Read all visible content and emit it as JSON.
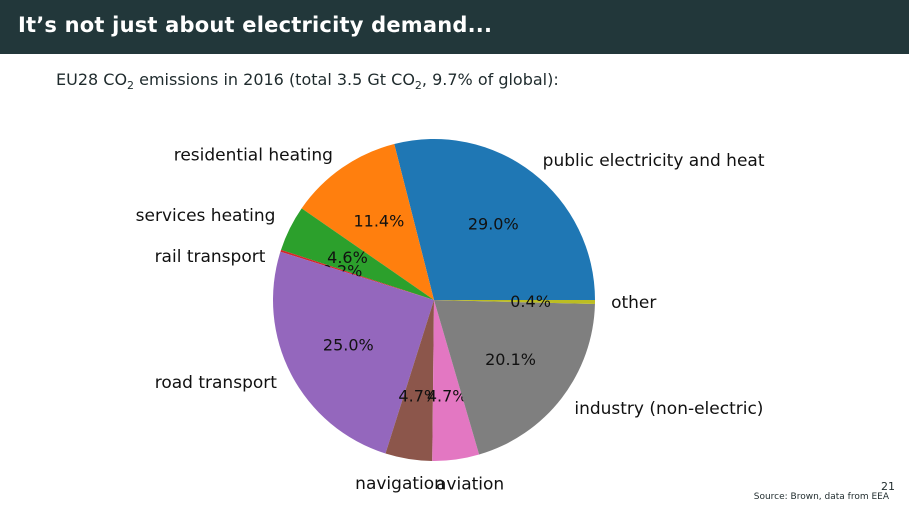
{
  "slide": {
    "title": "It’s not just about electricity demand...",
    "subtitle_parts": {
      "a": "EU28 CO",
      "a_sub": "2",
      "b": " emissions in 2016 (total 3.5 Gt CO",
      "b_sub": "2",
      "c": ", 9.7% of global):"
    },
    "slide_number": "21",
    "source": "Source: Brown, data from EEA"
  },
  "chart_data": {
    "type": "pie",
    "title": "EU28 CO2 emissions in 2016 (total 3.5 Gt CO2, 9.7% of global):",
    "start_angle_deg": 0,
    "direction": "counterclockwise",
    "slices": [
      {
        "name": "public electricity and heat",
        "value": 29.0,
        "label": "29.0%",
        "color": "#1f77b4"
      },
      {
        "name": "residential heating",
        "value": 11.4,
        "label": "11.4%",
        "color": "#ff7f0e"
      },
      {
        "name": "services heating",
        "value": 4.6,
        "label": "4.6%",
        "color": "#2ca02c"
      },
      {
        "name": "rail transport",
        "value": 0.2,
        "label": "0.2%",
        "color": "#d62728"
      },
      {
        "name": "road transport",
        "value": 25.0,
        "label": "25.0%",
        "color": "#9467bd"
      },
      {
        "name": "navigation",
        "value": 4.7,
        "label": "4.7%",
        "color": "#8c564b"
      },
      {
        "name": "aviation",
        "value": 4.7,
        "label": "4.7%",
        "color": "#e377c2"
      },
      {
        "name": "industry (non-electric)",
        "value": 20.1,
        "label": "20.1%",
        "color": "#7f7f7f"
      },
      {
        "name": "other",
        "value": 0.4,
        "label": "0.4%",
        "color": "#bcbd22"
      }
    ]
  }
}
